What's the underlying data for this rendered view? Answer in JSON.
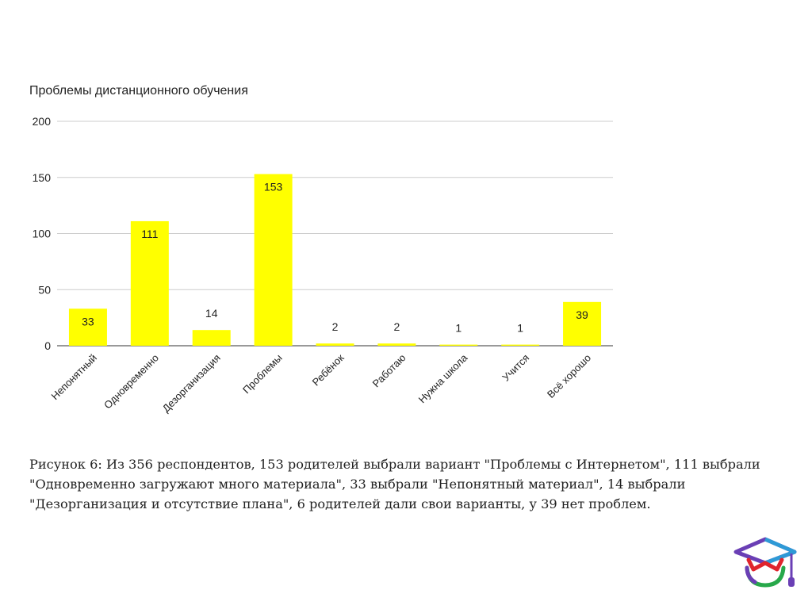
{
  "chart_data": {
    "type": "bar",
    "title": "Проблемы дистанционного обучения",
    "categories": [
      "Непонятный",
      "Одновременно",
      "Дезорганизация",
      "Проблемы",
      "Ребёнок",
      "Работаю",
      "Нужна школа",
      "Учится",
      "Всё хорошо"
    ],
    "values": [
      33,
      111,
      14,
      153,
      2,
      2,
      1,
      1,
      39
    ],
    "ylim": [
      0,
      200
    ],
    "yticks": [
      0,
      50,
      100,
      150,
      200
    ],
    "bar_color": "#ffff00",
    "grid": true,
    "data_labels": true,
    "xlabel": "",
    "ylabel": ""
  },
  "caption": "Рисунок 6: Из 356 респондентов, 153 родителей выбрали вариант \"Проблемы с Интернетом\", 111 выбрали \"Одновременно загружают много материала\", 33 выбрали \"Непонятный материал\", 14 выбрали \"Дезорганизация и отсутствие плана\", 6 родителей дали свои варианты, у 39 нет проблем.",
  "logo": {
    "icon": "graduation-cap-logo-icon",
    "colors": [
      "#6a3fb5",
      "#2e9ad6",
      "#e0242d",
      "#27a84a"
    ]
  }
}
